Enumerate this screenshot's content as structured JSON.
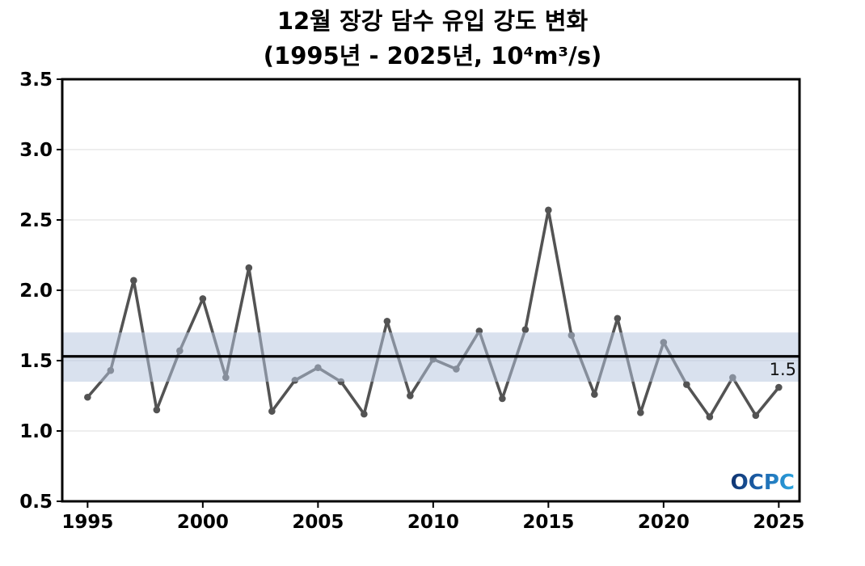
{
  "chart_data": {
    "type": "line",
    "title_line1": "12월 장강 담수 유입 강도 변화",
    "title_line2": "(1995년 - 2025년, 10⁴m³/s)",
    "x": [
      1995,
      1996,
      1997,
      1998,
      1999,
      2000,
      2001,
      2002,
      2003,
      2004,
      2005,
      2006,
      2007,
      2008,
      2009,
      2010,
      2011,
      2012,
      2013,
      2014,
      2015,
      2016,
      2017,
      2018,
      2019,
      2020,
      2021,
      2022,
      2023,
      2024,
      2025
    ],
    "series": [
      {
        "name": "december-inflow-intensity",
        "values": [
          1.24,
          1.43,
          2.07,
          1.15,
          1.57,
          1.94,
          1.38,
          2.16,
          1.14,
          1.36,
          1.45,
          1.35,
          1.12,
          1.78,
          1.25,
          1.51,
          1.44,
          1.71,
          1.23,
          1.72,
          2.57,
          1.68,
          1.26,
          1.8,
          1.13,
          1.63,
          1.33,
          1.1,
          1.38,
          1.11,
          1.31
        ]
      }
    ],
    "xlim": [
      1993.9,
      2025.9
    ],
    "ylim": [
      0.5,
      3.5
    ],
    "xticks": [
      "1995",
      "2000",
      "2005",
      "2010",
      "2015",
      "2020",
      "2025"
    ],
    "yticks": [
      "0.5",
      "1.0",
      "1.5",
      "2.0",
      "2.5",
      "3.0",
      "3.5"
    ],
    "grid": "horizontal-only",
    "legend": "none",
    "mean_line": {
      "value": 1.53,
      "label": "1.5"
    },
    "band": {
      "low": 1.35,
      "high": 1.7
    },
    "colors": {
      "line": "#535353",
      "marker": "#535353",
      "band": "#b6c6de",
      "band_opacity": 0.52,
      "mean_line": "#000000",
      "grid": "#e8e8e8",
      "axis": "#000000"
    }
  },
  "branding": {
    "logo_text": "OCPC",
    "logo_color_dark": "#0d2c67",
    "logo_color_light": "#2ba3de"
  }
}
